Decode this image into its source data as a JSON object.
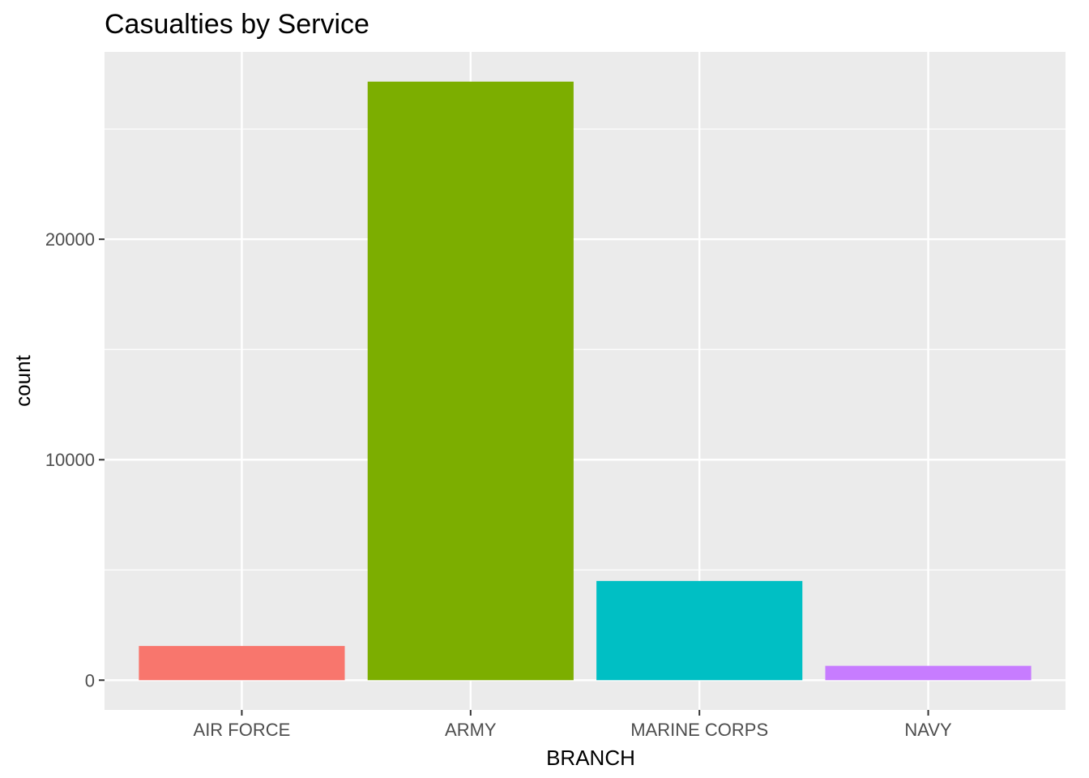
{
  "chart_data": {
    "type": "bar",
    "title": "Casualties by Service",
    "xlabel": "BRANCH",
    "ylabel": "count",
    "categories": [
      "AIR FORCE",
      "ARMY",
      "MARINE CORPS",
      "NAVY"
    ],
    "values": [
      1550,
      27150,
      4500,
      650
    ],
    "colors": [
      "#F8766D",
      "#7CAE00",
      "#00BFC4",
      "#C77CFF"
    ],
    "ylim": [
      -1350,
      28500
    ],
    "y_ticks": [
      0,
      10000,
      20000
    ],
    "y_tick_labels": [
      "0",
      "10000",
      "20000"
    ],
    "grid": true,
    "legend": "none",
    "panel_background": "#EBEBEB",
    "grid_color": "#FFFFFF"
  }
}
